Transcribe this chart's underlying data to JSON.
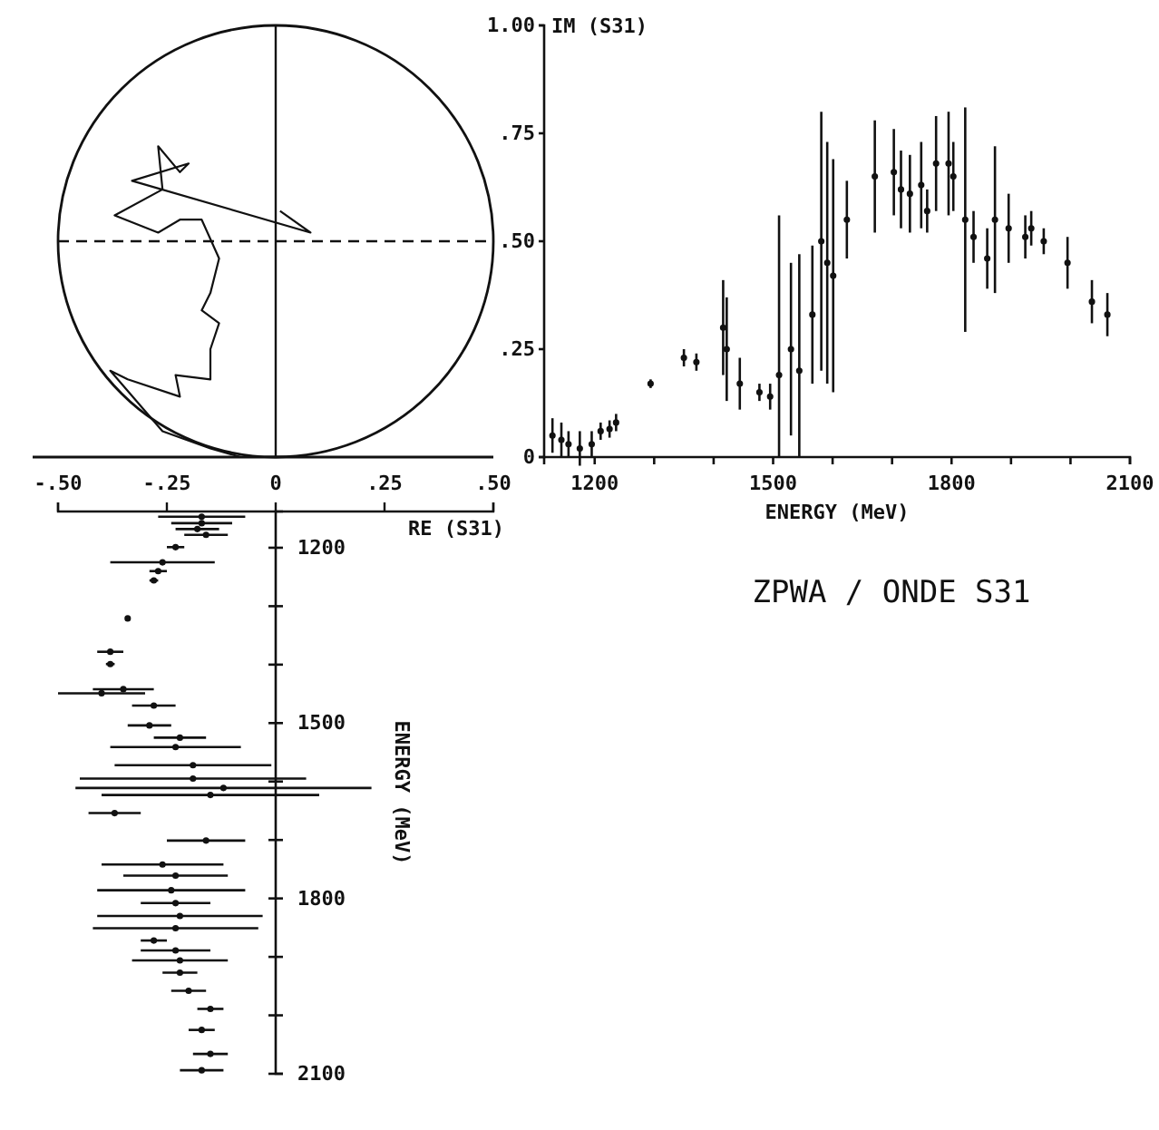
{
  "chart_data": [
    {
      "type": "line",
      "xlabel": "RE (S31)",
      "x": [
        -0.08,
        -0.15,
        -0.26,
        -0.38,
        -0.34,
        -0.22,
        -0.23,
        -0.15,
        -0.15,
        -0.13,
        -0.17,
        -0.15,
        -0.13,
        -0.17,
        -0.22,
        -0.27,
        -0.37,
        -0.26,
        -0.27,
        -0.22,
        -0.2,
        -0.33,
        0.08,
        0.01
      ],
      "values": [
        0.0,
        0.02,
        0.06,
        0.2,
        0.18,
        0.14,
        0.19,
        0.18,
        0.25,
        0.31,
        0.34,
        0.38,
        0.46,
        0.55,
        0.55,
        0.52,
        0.56,
        0.62,
        0.72,
        0.66,
        0.68,
        0.64,
        0.52,
        0.57
      ],
      "color": "#111111",
      "xlim": [
        -0.5,
        0.5
      ],
      "ylim": [
        0,
        1
      ],
      "xticks": [
        {
          "value": -0.5,
          "label": "-.50"
        },
        {
          "value": -0.25,
          "label": "-.25"
        },
        0,
        {
          "value": 0.25,
          "label": ".25"
        },
        {
          "value": 0.5,
          "label": ".50"
        }
      ],
      "tick_labels": "x",
      "ref_lines": [
        {
          "axis": "y",
          "value": 0.5,
          "line_style": "dashed"
        },
        {
          "axis": "x",
          "value": 0,
          "line_style": "solid"
        }
      ],
      "marker": "none"
    },
    {
      "type": "scatter",
      "title": "ZPWA / ONDE S31",
      "xlabel": "ENERGY (MeV)",
      "ylabel": "IM (S31)",
      "x": [
        1129,
        1144,
        1156,
        1175,
        1195,
        1210,
        1225,
        1236,
        1294,
        1350,
        1371,
        1416,
        1422,
        1444,
        1477,
        1495,
        1510,
        1530,
        1544,
        1566,
        1581,
        1591,
        1601,
        1624,
        1671,
        1703,
        1715,
        1730,
        1749,
        1759,
        1774,
        1795,
        1803,
        1823,
        1837,
        1860,
        1873,
        1896,
        1924,
        1934,
        1955,
        1995,
        2036,
        2062
      ],
      "values": [
        0.05,
        0.04,
        0.03,
        0.02,
        0.03,
        0.06,
        0.065,
        0.08,
        0.17,
        0.23,
        0.22,
        0.3,
        0.25,
        0.17,
        0.15,
        0.14,
        0.19,
        0.25,
        0.2,
        0.33,
        0.5,
        0.45,
        0.42,
        0.55,
        0.65,
        0.66,
        0.62,
        0.61,
        0.63,
        0.57,
        0.68,
        0.68,
        0.65,
        0.55,
        0.51,
        0.46,
        0.55,
        0.53,
        0.51,
        0.53,
        0.5,
        0.45,
        0.36,
        0.33
      ],
      "errors": [
        0.04,
        0.04,
        0.03,
        0.04,
        0.03,
        0.02,
        0.02,
        0.02,
        0.01,
        0.02,
        0.02,
        0.11,
        0.12,
        0.06,
        0.02,
        0.03,
        [
          0,
          0.56
        ],
        0.2,
        [
          0,
          0.47
        ],
        0.16,
        0.3,
        0.28,
        0.27,
        0.09,
        0.13,
        0.1,
        0.09,
        0.09,
        0.1,
        0.05,
        0.11,
        0.12,
        0.08,
        0.26,
        0.06,
        0.07,
        0.17,
        0.08,
        0.05,
        0.04,
        0.03,
        0.06,
        0.05,
        0.05
      ],
      "color": "#111111",
      "marker": "circle",
      "xlim": [
        1115,
        2100
      ],
      "ylim": [
        0,
        1
      ],
      "xticks": [
        1200,
        {
          "value": 1300,
          "label": null
        },
        {
          "value": 1400,
          "label": null
        },
        1500,
        {
          "value": 1600,
          "label": null
        },
        {
          "value": 1700,
          "label": null
        },
        1800,
        {
          "value": 1900,
          "label": null
        },
        {
          "value": 2000,
          "label": null
        },
        2100
      ],
      "yticks": [
        {
          "value": 0,
          "label": "0"
        },
        {
          "value": 0.25,
          "label": ".25"
        },
        {
          "value": 0.5,
          "label": ".50"
        },
        {
          "value": 0.75,
          "label": ".75"
        },
        {
          "value": 1,
          "label": "1.00"
        }
      ]
    },
    {
      "type": "scatter",
      "ylabel": "ENERGY (MeV)",
      "x": [
        -0.17,
        -0.17,
        -0.18,
        -0.16,
        -0.23,
        -0.26,
        -0.27,
        -0.28,
        -0.34,
        -0.38,
        -0.38,
        -0.4,
        -0.35,
        -0.28,
        -0.29,
        -0.22,
        -0.23,
        -0.19,
        -0.19,
        -0.12,
        -0.15,
        -0.37,
        -0.16,
        -0.26,
        -0.23,
        -0.24,
        -0.23,
        -0.22,
        -0.23,
        -0.28,
        -0.23,
        -0.22,
        -0.22,
        -0.2,
        -0.15,
        -0.17,
        -0.15,
        -0.17
      ],
      "values": [
        1147,
        1158,
        1168,
        1178,
        1199,
        1225,
        1240,
        1256,
        1321,
        1378,
        1399,
        1449,
        1442,
        1470,
        1504,
        1525,
        1541,
        1572,
        1595,
        1611,
        1623,
        1654,
        1701,
        1742,
        1761,
        1786,
        1808,
        1830,
        1851,
        1872,
        1889,
        1906,
        1927,
        1958,
        1989,
        2025,
        2066,
        2094
      ],
      "xerrors": [
        0.1,
        0.07,
        0.05,
        0.05,
        0.02,
        0.12,
        0.02,
        0.01,
        0.005,
        0.03,
        0.01,
        0.1,
        0.07,
        0.05,
        0.05,
        0.06,
        0.15,
        0.18,
        0.26,
        0.34,
        0.25,
        0.06,
        0.09,
        0.14,
        0.12,
        0.17,
        0.08,
        0.19,
        0.19,
        0.03,
        0.08,
        0.11,
        0.04,
        0.04,
        0.03,
        0.03,
        0.04,
        0.05
      ],
      "color": "#111111",
      "marker": "circle",
      "xlim": [
        -0.5,
        0.5
      ],
      "xticks": [
        {
          "value": -0.5,
          "label": null
        },
        {
          "value": -0.25,
          "label": null
        },
        {
          "value": 0,
          "label": null
        },
        {
          "value": 0.25,
          "label": null
        },
        {
          "value": 0.5,
          "label": null
        }
      ],
      "ylim": [
        2100,
        1138
      ],
      "yticks": [
        1200,
        {
          "value": 1300,
          "label": null
        },
        {
          "value": 1400,
          "label": null
        },
        1500,
        {
          "value": 1600,
          "label": null
        },
        {
          "value": 1700,
          "label": null
        },
        1800,
        {
          "value": 1900,
          "label": null
        },
        {
          "value": 2000,
          "label": null
        },
        2100
      ],
      "tick_labels": "y"
    }
  ]
}
